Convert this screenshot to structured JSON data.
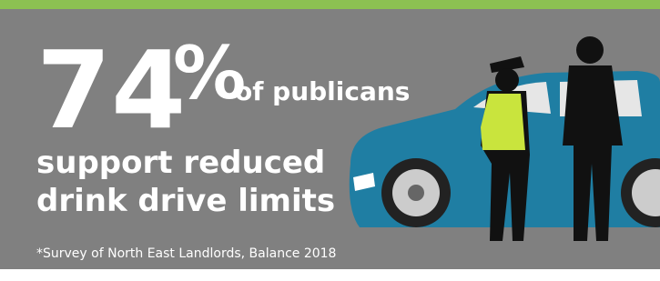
{
  "headline": {
    "number": "74",
    "unit": "%",
    "suffix": "of publicans",
    "lines": [
      "support reduced",
      "drink drive limits"
    ]
  },
  "footnote": "*Survey of North East Landlords, Balance 2018"
}
